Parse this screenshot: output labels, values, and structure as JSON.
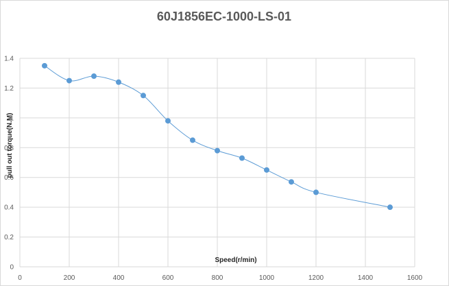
{
  "chart_data": {
    "type": "line",
    "title": "60J1856EC-1000-LS-01",
    "xlabel": "Speed(r/min)",
    "ylabel": "pull out torque(N.M)",
    "xlim": [
      0,
      1600
    ],
    "ylim": [
      0,
      1.4
    ],
    "x_ticks": [
      0,
      200,
      400,
      600,
      800,
      1000,
      1200,
      1400,
      1600
    ],
    "y_ticks": [
      0,
      0.2,
      0.4,
      0.6,
      0.8,
      1,
      1.2,
      1.4
    ],
    "y_tick_labels": [
      "0",
      "0.2",
      "0.4",
      "0.6",
      "0.8",
      "1",
      "1.2",
      "1.4"
    ],
    "grid": true,
    "series": [
      {
        "color": "#5b9bd5",
        "smooth": true,
        "markers": true,
        "x": [
          100,
          200,
          300,
          400,
          500,
          600,
          700,
          800,
          900,
          1000,
          1100,
          1200,
          1500
        ],
        "y": [
          1.35,
          1.25,
          1.28,
          1.24,
          1.15,
          0.98,
          0.85,
          0.78,
          0.73,
          0.65,
          0.57,
          0.5,
          0.4
        ]
      }
    ]
  }
}
